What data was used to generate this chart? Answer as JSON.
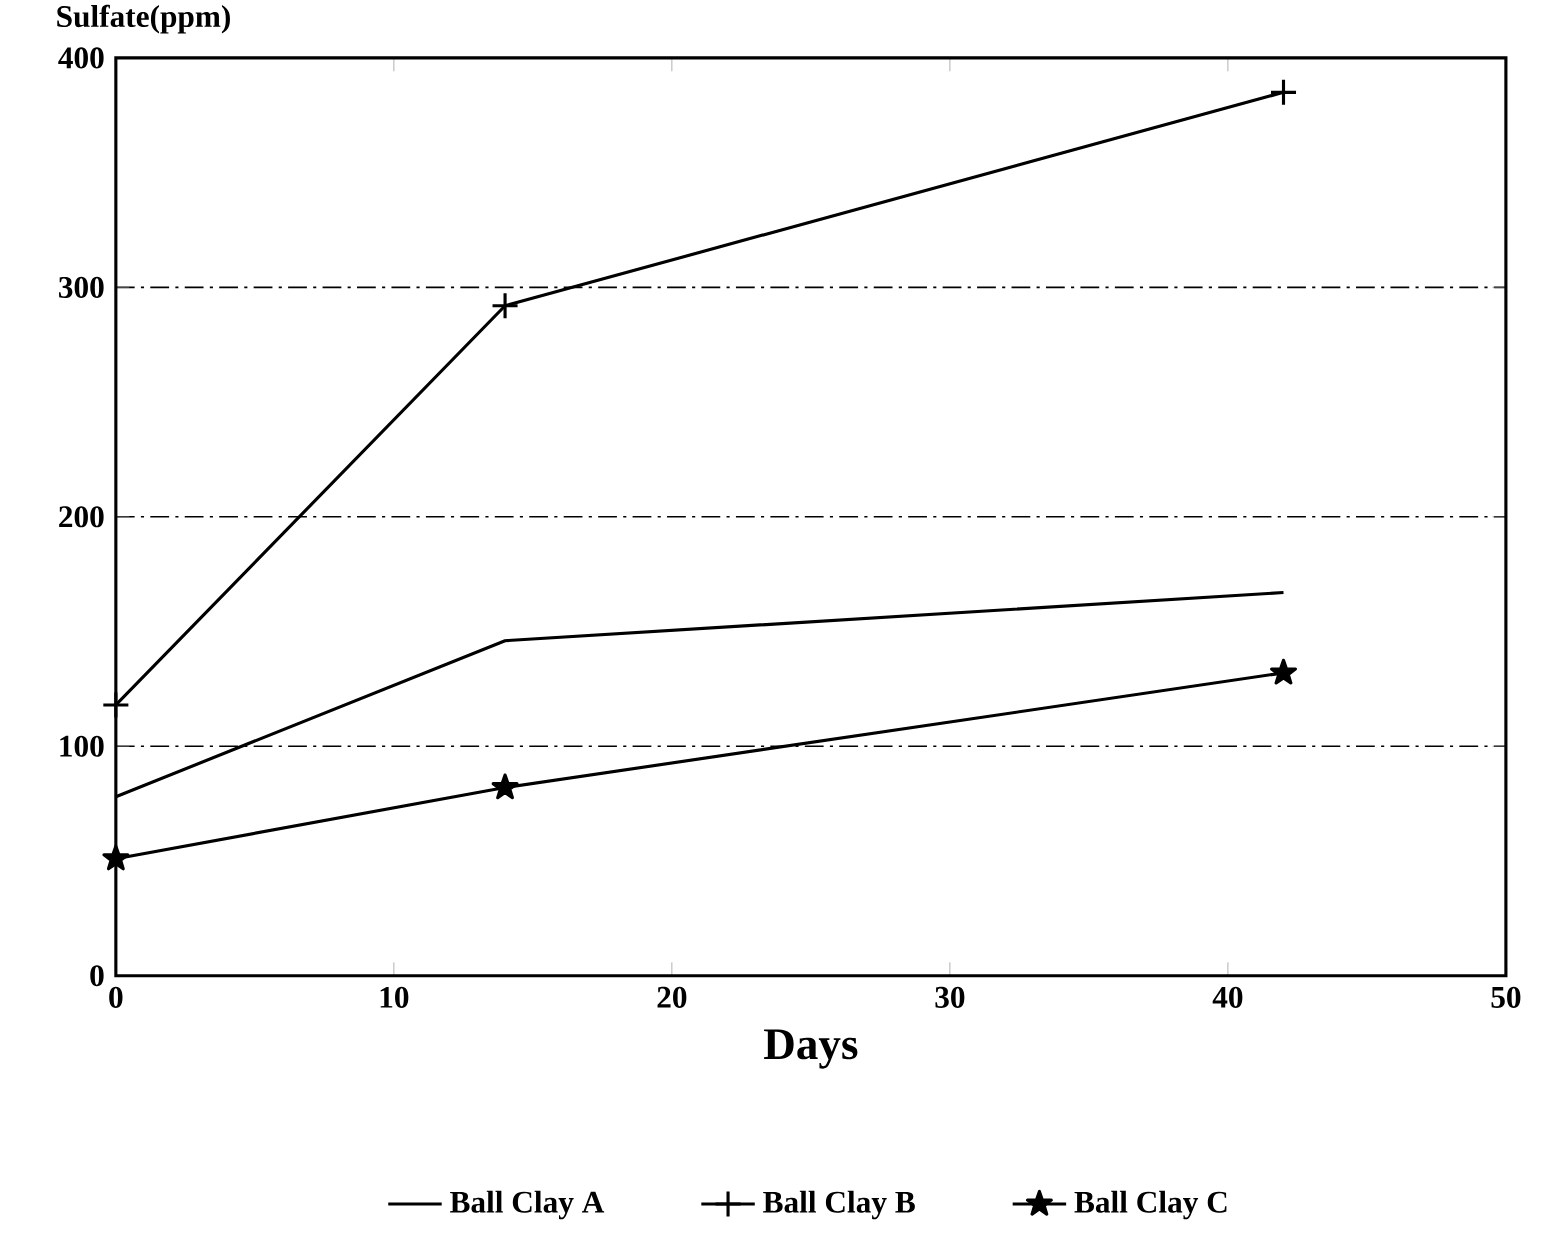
{
  "chart_data": {
    "type": "line",
    "xlabel": "Days",
    "ylabel": "Sulfate(ppm)",
    "x": [
      0,
      14,
      42
    ],
    "series": [
      {
        "name": "Ball Clay A",
        "color": "#000000",
        "values": [
          78,
          146,
          167
        ],
        "marker": "none"
      },
      {
        "name": "Ball Clay B",
        "color": "#000000",
        "values": [
          118,
          292,
          385
        ],
        "marker": "cross"
      },
      {
        "name": "Ball Clay C",
        "color": "#000000",
        "values": [
          51,
          82,
          132
        ],
        "marker": "star"
      }
    ],
    "xlim": [
      0,
      50
    ],
    "xticks": [
      0,
      10,
      20,
      30,
      40,
      50
    ],
    "ylim": [
      0,
      400
    ],
    "yticks": [
      0,
      100,
      200,
      300,
      400
    ],
    "grid": "y",
    "legend": "bottom",
    "line_style": "solid"
  }
}
